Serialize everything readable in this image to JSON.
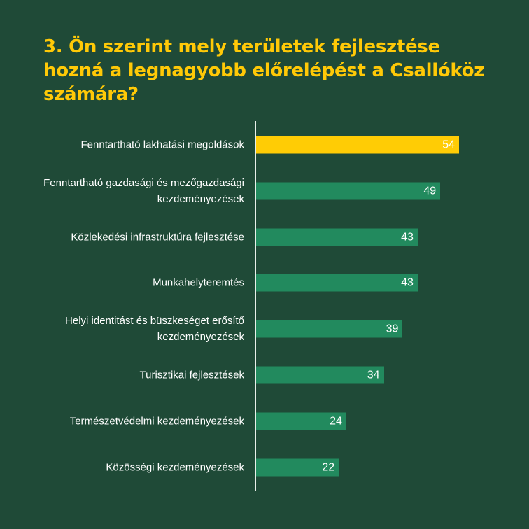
{
  "title": "3. Ön szerint mely területek fejlesztése hozná a legnagyobb előrelépést a Csallóköz számára?",
  "colors": {
    "background": "#1f4a37",
    "title": "#ffc907",
    "highlight_bar": "#ffcc05",
    "bar": "#228a5e",
    "text": "#ffffff"
  },
  "chart_data": {
    "type": "bar",
    "orientation": "horizontal",
    "title": "3. Ön szerint mely területek fejlesztése hozná a legnagyobb előrelépést a Csallóköz számára?",
    "categories": [
      "Fenntartható lakhatási megoldások",
      "Fenntartható gazdasági és mezőgazdasági kezdeményezések",
      "Közlekedési infrastruktúra fejlesztése",
      "Munkahelyteremtés",
      "Helyi identitást és büszkeséget erősítő kezdeményezések",
      "Turisztikai fejlesztések",
      "Természetvédelmi kezdeményezések",
      "Közösségi kezdeményezések"
    ],
    "values": [
      54,
      49,
      43,
      43,
      39,
      34,
      24,
      22
    ],
    "data_labels": [
      "54",
      "49",
      "43",
      "43",
      "39",
      "34",
      "24",
      "22"
    ],
    "highlighted_index": 0,
    "xlim": [
      0,
      54
    ],
    "xlabel": "",
    "ylabel": "",
    "grid": false,
    "legend": "none"
  }
}
